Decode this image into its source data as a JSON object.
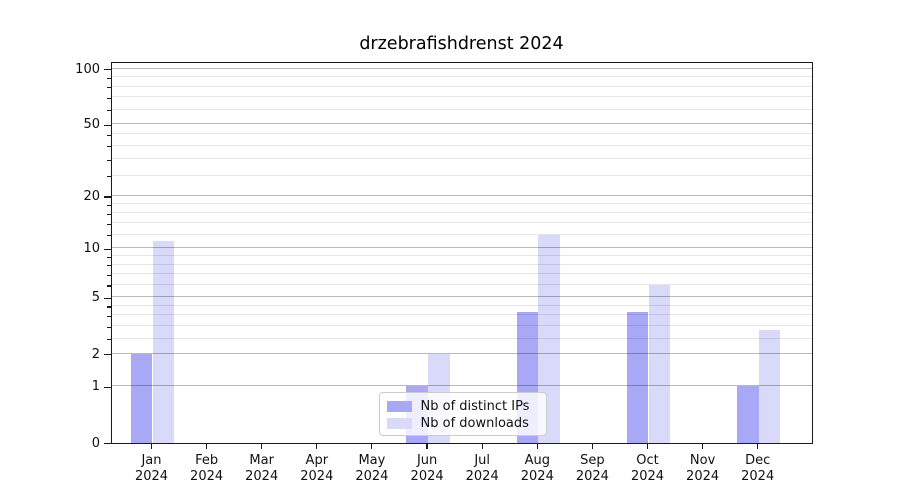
{
  "chart_data": {
    "type": "bar",
    "title": "drzebrafishdrenst 2024",
    "categories": [
      "Jan",
      "Feb",
      "Mar",
      "Apr",
      "May",
      "Jun",
      "Jul",
      "Aug",
      "Sep",
      "Oct",
      "Nov",
      "Dec"
    ],
    "category_year_label": "2024",
    "series": [
      {
        "name": "Nb of distinct IPs",
        "color": "#a8a8f7",
        "values": [
          2,
          0,
          0,
          0,
          0,
          1,
          0,
          4,
          0,
          4,
          0,
          1
        ]
      },
      {
        "name": "Nb of downloads",
        "color": "#d9d9fa",
        "values": [
          11,
          0,
          0,
          0,
          0,
          2,
          0,
          12,
          0,
          6,
          0,
          3
        ]
      }
    ],
    "y_scale": "log1p",
    "y_ticks": [
      0,
      1,
      2,
      5,
      10,
      20,
      50,
      100
    ],
    "y_minor_gridlines": [
      2.6,
      3.2,
      3.8,
      4.4,
      6,
      7,
      8,
      9,
      12,
      14,
      16,
      18,
      26,
      32,
      38,
      44,
      60,
      70,
      80,
      90
    ],
    "ylim": [
      0,
      110
    ],
    "grid": "on",
    "legend_position": "lower-center",
    "xlabel": "",
    "ylabel": ""
  },
  "colors": {
    "background": "#ffffff",
    "axis": "#1a1a1a",
    "major_grid": "#b9b9b9",
    "minor_grid": "#e6e6e6",
    "text": "#111111",
    "legend_border": "#cccccc"
  }
}
